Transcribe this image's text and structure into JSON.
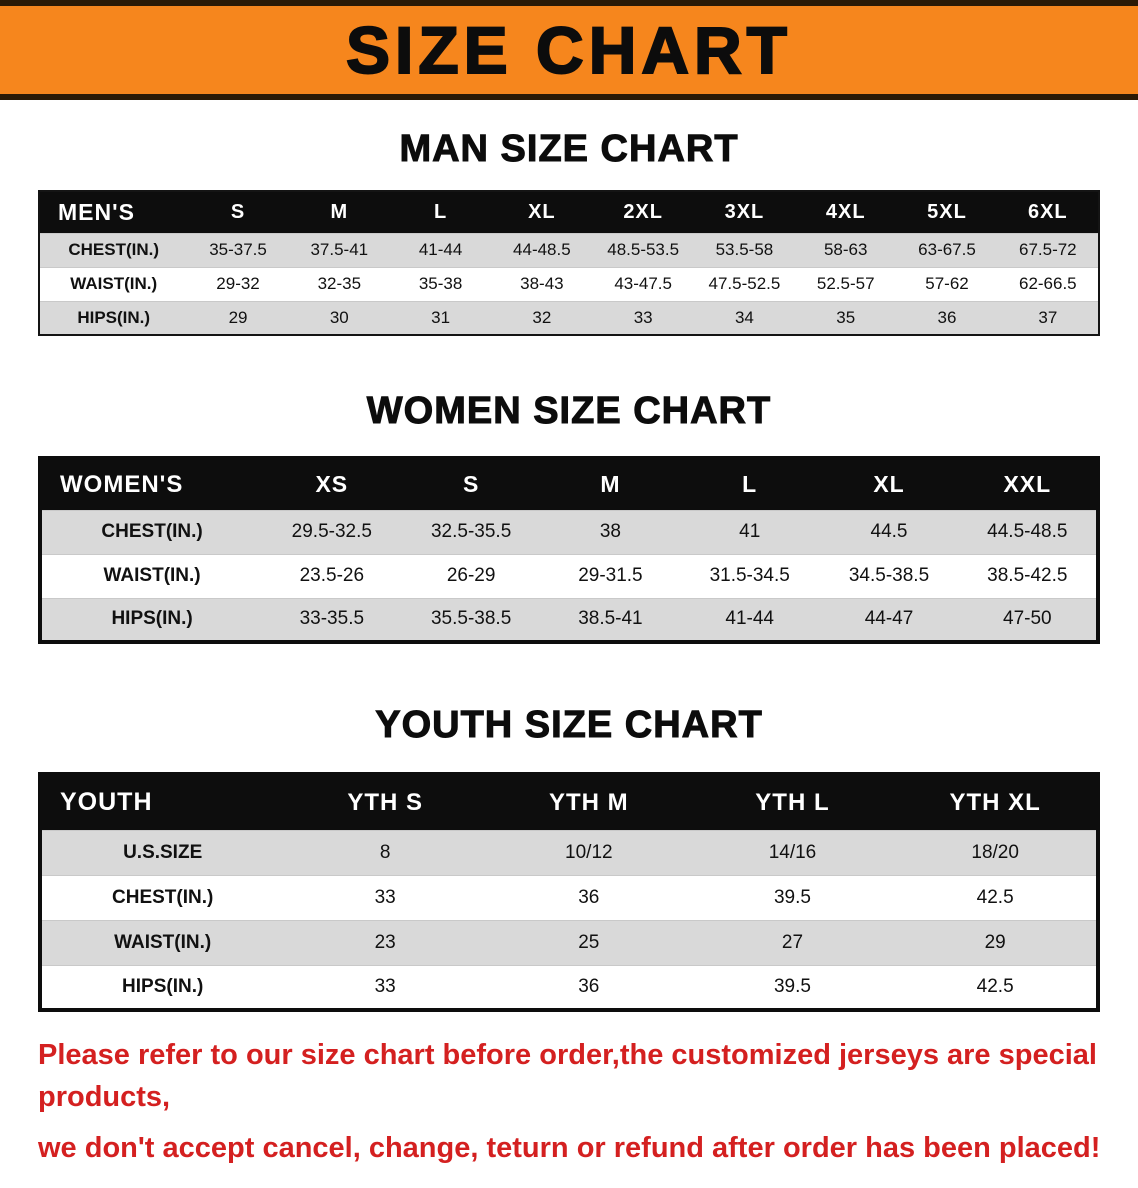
{
  "banner": {
    "title": "SIZE CHART"
  },
  "sections": [
    {
      "id": "men",
      "title": "MAN SIZE CHART",
      "table": {
        "header": [
          "MEN'S",
          "S",
          "M",
          "L",
          "XL",
          "2XL",
          "3XL",
          "4XL",
          "5XL",
          "6XL"
        ],
        "rows": [
          {
            "label": "CHEST(IN.)",
            "values": [
              "35-37.5",
              "37.5-41",
              "41-44",
              "44-48.5",
              "48.5-53.5",
              "53.5-58",
              "58-63",
              "63-67.5",
              "67.5-72"
            ]
          },
          {
            "label": "WAIST(IN.)",
            "values": [
              "29-32",
              "32-35",
              "35-38",
              "38-43",
              "43-47.5",
              "47.5-52.5",
              "52.5-57",
              "57-62",
              "62-66.5"
            ]
          },
          {
            "label": "HIPS(IN.)",
            "values": [
              "29",
              "30",
              "31",
              "32",
              "33",
              "34",
              "35",
              "36",
              "37"
            ]
          }
        ]
      }
    },
    {
      "id": "women",
      "title": "WOMEN SIZE CHART",
      "table": {
        "header": [
          "WOMEN'S",
          "XS",
          "S",
          "M",
          "L",
          "XL",
          "XXL"
        ],
        "rows": [
          {
            "label": "CHEST(IN.)",
            "values": [
              "29.5-32.5",
              "32.5-35.5",
              "38",
              "41",
              "44.5",
              "44.5-48.5"
            ]
          },
          {
            "label": "WAIST(IN.)",
            "values": [
              "23.5-26",
              "26-29",
              "29-31.5",
              "31.5-34.5",
              "34.5-38.5",
              "38.5-42.5"
            ]
          },
          {
            "label": "HIPS(IN.)",
            "values": [
              "33-35.5",
              "35.5-38.5",
              "38.5-41",
              "41-44",
              "44-47",
              "47-50"
            ]
          }
        ]
      }
    },
    {
      "id": "youth",
      "title": "YOUTH SIZE CHART",
      "table": {
        "header": [
          "YOUTH",
          "YTH S",
          "YTH M",
          "YTH L",
          "YTH XL"
        ],
        "rows": [
          {
            "label": "U.S.SIZE",
            "values": [
              "8",
              "10/12",
              "14/16",
              "18/20"
            ]
          },
          {
            "label": "CHEST(IN.)",
            "values": [
              "33",
              "36",
              "39.5",
              "42.5"
            ]
          },
          {
            "label": "WAIST(IN.)",
            "values": [
              "23",
              "25",
              "27",
              "29"
            ]
          },
          {
            "label": "HIPS(IN.)",
            "values": [
              "33",
              "36",
              "39.5",
              "42.5"
            ]
          }
        ]
      }
    }
  ],
  "footer": {
    "line1": "Please refer to our size chart before order,the customized jerseys are special products,",
    "line2": "we don't accept cancel, change, teturn or refund after order has been placed!"
  },
  "colors": {
    "banner_orange": "#f6861d",
    "banner_edge": "#2b1a06",
    "table_header_black": "#0d0d0d",
    "row_gray": "#d9d9d9",
    "notice_red": "#d42020"
  }
}
